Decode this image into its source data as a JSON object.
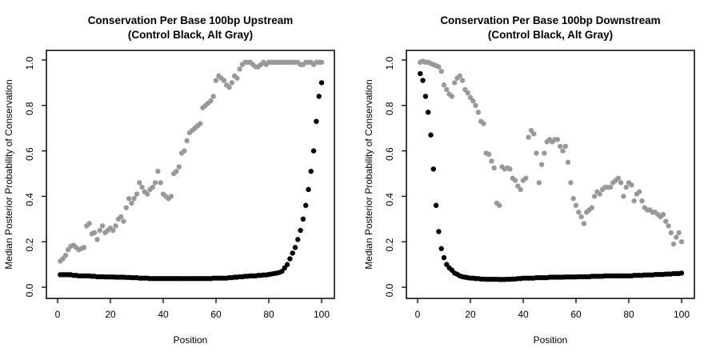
{
  "figure": {
    "background": "#ffffff",
    "point_color_control": "#000000",
    "point_color_alt": "#999999"
  },
  "chart_data": [
    {
      "type": "scatter",
      "panel": "upstream",
      "title": "Conservation Per Base 100bp Upstream",
      "subtitle": "(Control Black, Alt Gray)",
      "xlabel": "Position",
      "ylabel": "Median Posterior Probability of Conservation",
      "xlim": [
        0,
        100
      ],
      "ylim": [
        0.0,
        1.0
      ],
      "xticks": [
        "0",
        "20",
        "40",
        "60",
        "80",
        "100"
      ],
      "xtick_values": [
        0,
        20,
        40,
        60,
        80,
        100
      ],
      "yticks": [
        "0.0",
        "0.2",
        "0.4",
        "0.6",
        "0.8",
        "1.0"
      ],
      "ytick_values": [
        0,
        0.2,
        0.4,
        0.6,
        0.8,
        1.0
      ],
      "grid": false,
      "legend_position": "none",
      "x_start": 1,
      "x_step": 1,
      "series": [
        {
          "name": "Control",
          "color": "#000000",
          "values": [
            0.055,
            0.055,
            0.055,
            0.055,
            0.055,
            0.052,
            0.052,
            0.05,
            0.05,
            0.05,
            0.05,
            0.05,
            0.048,
            0.048,
            0.046,
            0.046,
            0.046,
            0.045,
            0.045,
            0.045,
            0.045,
            0.044,
            0.044,
            0.044,
            0.044,
            0.043,
            0.043,
            0.042,
            0.042,
            0.042,
            0.04,
            0.04,
            0.04,
            0.04,
            0.038,
            0.038,
            0.038,
            0.038,
            0.038,
            0.038,
            0.038,
            0.038,
            0.038,
            0.038,
            0.038,
            0.038,
            0.038,
            0.038,
            0.038,
            0.038,
            0.038,
            0.038,
            0.038,
            0.038,
            0.038,
            0.038,
            0.038,
            0.038,
            0.04,
            0.04,
            0.04,
            0.04,
            0.04,
            0.04,
            0.042,
            0.042,
            0.044,
            0.044,
            0.046,
            0.046,
            0.048,
            0.048,
            0.05,
            0.05,
            0.05,
            0.052,
            0.052,
            0.054,
            0.054,
            0.056,
            0.058,
            0.06,
            0.062,
            0.065,
            0.07,
            0.085,
            0.1,
            0.125,
            0.15,
            0.175,
            0.21,
            0.25,
            0.3,
            0.36,
            0.43,
            0.51,
            0.6,
            0.73,
            0.84,
            0.9
          ]
        },
        {
          "name": "Alt",
          "color": "#999999",
          "values": [
            0.115,
            0.125,
            0.14,
            0.165,
            0.18,
            0.185,
            0.175,
            0.165,
            0.17,
            0.175,
            0.27,
            0.28,
            0.235,
            0.24,
            0.21,
            0.25,
            0.27,
            0.24,
            0.25,
            0.26,
            0.25,
            0.27,
            0.3,
            0.31,
            0.29,
            0.35,
            0.39,
            0.37,
            0.39,
            0.41,
            0.46,
            0.44,
            0.42,
            0.41,
            0.43,
            0.44,
            0.46,
            0.51,
            0.46,
            0.41,
            0.4,
            0.39,
            0.4,
            0.5,
            0.51,
            0.53,
            0.59,
            0.6,
            0.645,
            0.68,
            0.69,
            0.7,
            0.71,
            0.72,
            0.79,
            0.8,
            0.81,
            0.82,
            0.84,
            0.91,
            0.93,
            0.92,
            0.91,
            0.89,
            0.88,
            0.9,
            0.93,
            0.92,
            0.96,
            0.98,
            0.99,
            0.99,
            0.99,
            0.98,
            0.97,
            0.97,
            0.98,
            0.99,
            0.98,
            0.99,
            0.99,
            0.99,
            0.99,
            0.99,
            0.99,
            0.99,
            0.99,
            0.99,
            0.99,
            0.99,
            0.99,
            0.98,
            0.98,
            0.99,
            0.99,
            0.99,
            0.98,
            0.99,
            0.99,
            0.99
          ]
        }
      ]
    },
    {
      "type": "scatter",
      "panel": "downstream",
      "title": "Conservation Per Base 100bp Downstream",
      "subtitle": "(Control Black, Alt Gray)",
      "xlabel": "Position",
      "ylabel": "Median Posterior Probability of Conservation",
      "xlim": [
        0,
        100
      ],
      "ylim": [
        0.0,
        1.0
      ],
      "xticks": [
        "0",
        "20",
        "40",
        "60",
        "80",
        "100"
      ],
      "xtick_values": [
        0,
        20,
        40,
        60,
        80,
        100
      ],
      "yticks": [
        "0.0",
        "0.2",
        "0.4",
        "0.6",
        "0.8",
        "1.0"
      ],
      "ytick_values": [
        0,
        0.2,
        0.4,
        0.6,
        0.8,
        1.0
      ],
      "grid": false,
      "legend_position": "none",
      "x_start": 1,
      "x_step": 1,
      "series": [
        {
          "name": "Control",
          "color": "#000000",
          "values": [
            0.94,
            0.91,
            0.84,
            0.77,
            0.67,
            0.52,
            0.36,
            0.245,
            0.17,
            0.13,
            0.1,
            0.085,
            0.075,
            0.062,
            0.057,
            0.05,
            0.046,
            0.044,
            0.042,
            0.04,
            0.04,
            0.038,
            0.038,
            0.036,
            0.036,
            0.035,
            0.035,
            0.035,
            0.035,
            0.035,
            0.034,
            0.034,
            0.034,
            0.035,
            0.035,
            0.036,
            0.036,
            0.038,
            0.038,
            0.04,
            0.04,
            0.04,
            0.04,
            0.04,
            0.042,
            0.042,
            0.042,
            0.042,
            0.042,
            0.044,
            0.044,
            0.044,
            0.044,
            0.044,
            0.044,
            0.045,
            0.045,
            0.045,
            0.045,
            0.045,
            0.046,
            0.046,
            0.046,
            0.046,
            0.046,
            0.048,
            0.048,
            0.048,
            0.048,
            0.048,
            0.05,
            0.05,
            0.05,
            0.05,
            0.05,
            0.05,
            0.05,
            0.05,
            0.05,
            0.05,
            0.05,
            0.052,
            0.052,
            0.052,
            0.052,
            0.054,
            0.054,
            0.054,
            0.054,
            0.056,
            0.056,
            0.056,
            0.056,
            0.058,
            0.058,
            0.058,
            0.06,
            0.06,
            0.06,
            0.062
          ]
        },
        {
          "name": "Alt",
          "color": "#999999",
          "values": [
            0.99,
            0.995,
            0.99,
            0.99,
            0.985,
            0.98,
            0.975,
            0.97,
            0.95,
            0.89,
            0.87,
            0.85,
            0.84,
            0.9,
            0.92,
            0.93,
            0.91,
            0.87,
            0.855,
            0.835,
            0.82,
            0.8,
            0.77,
            0.73,
            0.72,
            0.59,
            0.585,
            0.555,
            0.525,
            0.37,
            0.36,
            0.53,
            0.52,
            0.525,
            0.52,
            0.48,
            0.47,
            0.445,
            0.43,
            0.47,
            0.48,
            0.66,
            0.69,
            0.675,
            0.59,
            0.46,
            0.54,
            0.59,
            0.64,
            0.65,
            0.64,
            0.65,
            0.65,
            0.62,
            0.6,
            0.62,
            0.55,
            0.46,
            0.39,
            0.36,
            0.33,
            0.31,
            0.28,
            0.33,
            0.34,
            0.35,
            0.4,
            0.42,
            0.41,
            0.43,
            0.44,
            0.44,
            0.44,
            0.46,
            0.47,
            0.48,
            0.46,
            0.4,
            0.44,
            0.46,
            0.45,
            0.38,
            0.41,
            0.42,
            0.38,
            0.35,
            0.34,
            0.34,
            0.33,
            0.33,
            0.32,
            0.31,
            0.32,
            0.29,
            0.27,
            0.24,
            0.19,
            0.22,
            0.24,
            0.2
          ]
        }
      ]
    }
  ]
}
